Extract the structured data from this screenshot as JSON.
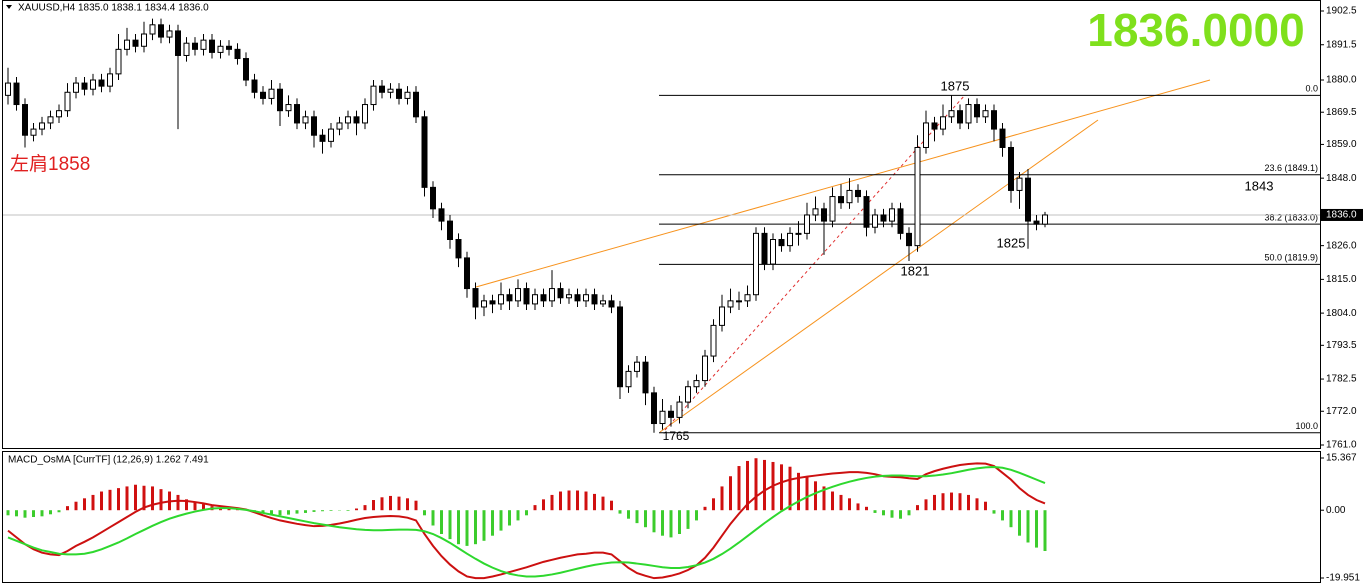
{
  "chart_data": [
    {
      "type": "candlestick",
      "symbol": "XAUUSD,H4",
      "ohlc_text": "1835.0 1838.1 1834.4 1836.0",
      "big_price": "1836.0000",
      "big_price_color": "#7fe01c",
      "ylim": [
        1761.0,
        1902.5
      ],
      "yticks": [
        {
          "value": 1902.5,
          "label": "1902.5"
        },
        {
          "value": 1891.5,
          "label": "1891.5"
        },
        {
          "value": 1880.0,
          "label": "1880.0"
        },
        {
          "value": 1869.5,
          "label": "1869.5"
        },
        {
          "value": 1859.0,
          "label": "1859.0"
        },
        {
          "value": 1848.0,
          "label": "1848.0"
        },
        {
          "value": 1826.0,
          "label": "1826.0"
        },
        {
          "value": 1815.0,
          "label": "1815.0"
        },
        {
          "value": 1804.0,
          "label": "1804.0"
        },
        {
          "value": 1793.5,
          "label": "1793.5"
        },
        {
          "value": 1782.5,
          "label": "1782.5"
        },
        {
          "value": 1772.0,
          "label": "1772.0"
        },
        {
          "value": 1761.0,
          "label": "1761.0"
        }
      ],
      "last_price": {
        "value": 1836.0,
        "label": "1836.0"
      },
      "fib_levels": [
        {
          "value": 1875.0,
          "label": "0.0"
        },
        {
          "value": 1849.1,
          "label": "23.6 (1849.1)"
        },
        {
          "value": 1833.0,
          "label": "38.2 (1833.0)"
        },
        {
          "value": 1819.9,
          "label": "50.0 (1819.9)"
        },
        {
          "value": 1765.0,
          "label": "100.0"
        }
      ],
      "annotations": [
        {
          "text": "左肩1858",
          "color": "#e02020"
        },
        {
          "text": "1875"
        },
        {
          "text": "1843"
        },
        {
          "text": "1825"
        },
        {
          "text": "1821"
        },
        {
          "text": "1765"
        }
      ],
      "ohlc": [
        [
          1875,
          1884,
          1872,
          1879
        ],
        [
          1879,
          1881,
          1870,
          1872
        ],
        [
          1872,
          1874,
          1858,
          1862
        ],
        [
          1862,
          1866,
          1860,
          1864
        ],
        [
          1864,
          1868,
          1862,
          1866
        ],
        [
          1866,
          1870,
          1864,
          1868
        ],
        [
          1868,
          1872,
          1866,
          1870
        ],
        [
          1870,
          1879,
          1868,
          1876
        ],
        [
          1876,
          1881,
          1874,
          1879
        ],
        [
          1879,
          1881,
          1875,
          1877
        ],
        [
          1877,
          1882,
          1875,
          1880
        ],
        [
          1880,
          1882,
          1876,
          1878
        ],
        [
          1878,
          1884,
          1876,
          1882
        ],
        [
          1882,
          1895,
          1880,
          1890
        ],
        [
          1890,
          1897,
          1888,
          1893
        ],
        [
          1893,
          1895,
          1889,
          1891
        ],
        [
          1891,
          1899,
          1889,
          1895
        ],
        [
          1895,
          1900,
          1893,
          1898
        ],
        [
          1898,
          1900,
          1892,
          1894
        ],
        [
          1894,
          1898,
          1892,
          1896
        ],
        [
          1896,
          1898,
          1864,
          1888
        ],
        [
          1888,
          1894,
          1886,
          1892
        ],
        [
          1892,
          1894,
          1888,
          1890
        ],
        [
          1890,
          1895,
          1888,
          1893
        ],
        [
          1893,
          1895,
          1887,
          1889
        ],
        [
          1889,
          1893,
          1887,
          1891
        ],
        [
          1891,
          1893,
          1888,
          1890
        ],
        [
          1890,
          1892,
          1885,
          1887
        ],
        [
          1887,
          1889,
          1878,
          1880
        ],
        [
          1880,
          1882,
          1874,
          1876
        ],
        [
          1876,
          1878,
          1872,
          1874
        ],
        [
          1874,
          1880,
          1872,
          1877
        ],
        [
          1877,
          1879,
          1865,
          1870
        ],
        [
          1870,
          1875,
          1868,
          1872
        ],
        [
          1872,
          1874,
          1864,
          1866
        ],
        [
          1866,
          1870,
          1864,
          1868
        ],
        [
          1868,
          1870,
          1858,
          1862
        ],
        [
          1862,
          1864,
          1856,
          1860
        ],
        [
          1860,
          1866,
          1858,
          1864
        ],
        [
          1864,
          1868,
          1862,
          1866
        ],
        [
          1866,
          1870,
          1864,
          1868
        ],
        [
          1868,
          1870,
          1862,
          1866
        ],
        [
          1866,
          1874,
          1864,
          1872
        ],
        [
          1872,
          1880,
          1870,
          1878
        ],
        [
          1878,
          1880,
          1874,
          1876
        ],
        [
          1876,
          1879,
          1874,
          1877
        ],
        [
          1877,
          1879,
          1872,
          1874
        ],
        [
          1874,
          1878,
          1872,
          1876
        ],
        [
          1876,
          1878,
          1866,
          1868
        ],
        [
          1868,
          1870,
          1842,
          1845
        ],
        [
          1845,
          1847,
          1835,
          1838
        ],
        [
          1838,
          1840,
          1831,
          1834
        ],
        [
          1834,
          1836,
          1825,
          1828
        ],
        [
          1828,
          1830,
          1819,
          1822
        ],
        [
          1822,
          1824,
          1809,
          1812
        ],
        [
          1812,
          1814,
          1802,
          1806
        ],
        [
          1806,
          1810,
          1803,
          1808
        ],
        [
          1808,
          1810,
          1804,
          1807
        ],
        [
          1807,
          1814,
          1805,
          1810
        ],
        [
          1810,
          1812,
          1805,
          1808
        ],
        [
          1808,
          1815,
          1806,
          1812
        ],
        [
          1812,
          1814,
          1805,
          1807
        ],
        [
          1807,
          1812,
          1805,
          1810
        ],
        [
          1810,
          1812,
          1806,
          1808
        ],
        [
          1808,
          1818,
          1806,
          1812
        ],
        [
          1812,
          1814,
          1807,
          1809
        ],
        [
          1809,
          1812,
          1807,
          1810
        ],
        [
          1810,
          1812,
          1806,
          1808
        ],
        [
          1808,
          1812,
          1806,
          1810
        ],
        [
          1810,
          1812,
          1805,
          1807
        ],
        [
          1807,
          1810,
          1806,
          1808
        ],
        [
          1808,
          1810,
          1804,
          1806
        ],
        [
          1806,
          1808,
          1776,
          1780
        ],
        [
          1780,
          1787,
          1778,
          1785
        ],
        [
          1785,
          1790,
          1783,
          1788
        ],
        [
          1788,
          1790,
          1774,
          1778
        ],
        [
          1778,
          1780,
          1765,
          1768
        ],
        [
          1768,
          1776,
          1766,
          1772
        ],
        [
          1772,
          1774,
          1767,
          1770
        ],
        [
          1770,
          1777,
          1768,
          1775
        ],
        [
          1775,
          1782,
          1773,
          1780
        ],
        [
          1780,
          1784,
          1778,
          1782
        ],
        [
          1782,
          1792,
          1780,
          1790
        ],
        [
          1790,
          1802,
          1788,
          1800
        ],
        [
          1800,
          1810,
          1798,
          1806
        ],
        [
          1806,
          1812,
          1804,
          1808
        ],
        [
          1808,
          1811,
          1805,
          1808
        ],
        [
          1808,
          1813,
          1806,
          1810
        ],
        [
          1810,
          1832,
          1808,
          1830
        ],
        [
          1830,
          1832,
          1818,
          1820
        ],
        [
          1820,
          1830,
          1818,
          1828
        ],
        [
          1828,
          1830,
          1824,
          1826
        ],
        [
          1826,
          1832,
          1824,
          1830
        ],
        [
          1830,
          1834,
          1826,
          1830
        ],
        [
          1830,
          1840,
          1828,
          1836
        ],
        [
          1836,
          1842,
          1834,
          1838
        ],
        [
          1838,
          1840,
          1823,
          1834
        ],
        [
          1834,
          1845,
          1832,
          1842
        ],
        [
          1842,
          1846,
          1838,
          1840
        ],
        [
          1840,
          1848,
          1838,
          1844
        ],
        [
          1844,
          1846,
          1840,
          1842
        ],
        [
          1842,
          1844,
          1829,
          1832
        ],
        [
          1832,
          1838,
          1830,
          1836
        ],
        [
          1836,
          1838,
          1832,
          1834
        ],
        [
          1834,
          1840,
          1832,
          1838
        ],
        [
          1838,
          1840,
          1828,
          1830
        ],
        [
          1830,
          1832,
          1821,
          1826
        ],
        [
          1826,
          1862,
          1824,
          1858
        ],
        [
          1858,
          1870,
          1856,
          1866
        ],
        [
          1866,
          1868,
          1860,
          1864
        ],
        [
          1864,
          1872,
          1862,
          1868
        ],
        [
          1868,
          1875,
          1866,
          1870
        ],
        [
          1870,
          1872,
          1864,
          1866
        ],
        [
          1866,
          1874,
          1864,
          1872
        ],
        [
          1872,
          1874,
          1866,
          1868
        ],
        [
          1868,
          1872,
          1866,
          1870
        ],
        [
          1870,
          1872,
          1860,
          1864
        ],
        [
          1864,
          1866,
          1855,
          1858
        ],
        [
          1858,
          1860,
          1840,
          1844
        ],
        [
          1844,
          1850,
          1838,
          1848
        ],
        [
          1848,
          1851,
          1825,
          1834
        ],
        [
          1834,
          1836,
          1831,
          1833
        ],
        [
          1833,
          1837,
          1832,
          1836
        ]
      ]
    },
    {
      "type": "macd",
      "title": "MACD_OsMA [CurrTF] (12,26,9) 1.262 7.491",
      "ylim": [
        -19.951,
        15.367
      ],
      "yticks": [
        {
          "value": 15.367,
          "label": "15.367"
        },
        {
          "value": 0,
          "label": "0.00"
        },
        {
          "value": -19.951,
          "label": "-19.951"
        }
      ],
      "up_color": "#d01010",
      "down_color": "#3ccc2c",
      "histogram": [
        -1.5,
        -1.8,
        -2.2,
        -2.0,
        -1.8,
        -1.2,
        -0.6,
        1.2,
        2.5,
        3.5,
        4.5,
        5.5,
        6.0,
        6.5,
        7.0,
        7.5,
        7.2,
        7.0,
        6.2,
        5.5,
        4.5,
        3.2,
        2.5,
        1.8,
        1.2,
        0.8,
        0.6,
        0.5,
        0.2,
        -0.5,
        -0.9,
        -1.2,
        -1.5,
        -1.3,
        -1.0,
        -0.8,
        -0.5,
        -0.3,
        -0.2,
        -0.1,
        -0.2,
        0.5,
        1.5,
        3.0,
        3.8,
        4.2,
        4.0,
        3.5,
        2.8,
        -1.5,
        -4.5,
        -7.0,
        -8.5,
        -10.0,
        -10.5,
        -10.0,
        -9.0,
        -7.5,
        -6.0,
        -4.5,
        -3.0,
        -1.5,
        1.5,
        3.2,
        4.5,
        5.5,
        5.8,
        5.8,
        5.5,
        4.8,
        4.0,
        2.8,
        -1.0,
        -2.5,
        -3.8,
        -5.0,
        -6.5,
        -7.5,
        -8.0,
        -7.0,
        -5.5,
        -3.0,
        1.0,
        3.5,
        7.0,
        10.0,
        13.0,
        14.5,
        15.3,
        14.8,
        14.2,
        13.5,
        12.8,
        11.0,
        10.0,
        8.5,
        7.0,
        5.5,
        4.5,
        3.5,
        2.0,
        1.0,
        -0.8,
        -1.5,
        -2.2,
        -2.5,
        -1.5,
        1.5,
        3.2,
        4.5,
        5.0,
        5.2,
        5.0,
        4.5,
        3.5,
        2.5,
        -1.0,
        -3.0,
        -5.0,
        -7.5,
        -9.5,
        -11.0,
        -12.0
      ],
      "series": [
        {
          "color": "#cc1010",
          "values": [
            -6,
            -8,
            -10,
            -11.5,
            -12.5,
            -13,
            -13.2,
            -12,
            -10.5,
            -9.3,
            -8,
            -6.5,
            -5,
            -3.5,
            -2,
            -0.5,
            0.8,
            1.6,
            2.2,
            2.6,
            2.8,
            2.7,
            2.4,
            2,
            1.5,
            1.2,
            0.9,
            0.6,
            0.2,
            -0.6,
            -1.5,
            -2.3,
            -3,
            -3.5,
            -4,
            -4.4,
            -4.7,
            -4.6,
            -4.3,
            -3.9,
            -3.4,
            -2.8,
            -2.3,
            -2,
            -1.8,
            -1.7,
            -1.8,
            -2.2,
            -3,
            -7,
            -10.5,
            -13.5,
            -16,
            -18,
            -19.5,
            -20,
            -20,
            -19.5,
            -18.9,
            -18.2,
            -17.5,
            -16.8,
            -16,
            -15.2,
            -14.6,
            -14,
            -13.5,
            -13,
            -12.8,
            -12.5,
            -12.5,
            -13,
            -15,
            -17,
            -18.5,
            -19.3,
            -20,
            -19.8,
            -19.3,
            -18.6,
            -17.6,
            -16.2,
            -14,
            -11,
            -7.5,
            -4,
            -1,
            1.8,
            4,
            5.8,
            7.2,
            8.2,
            9,
            9.5,
            9.9,
            10.2,
            10.5,
            10.8,
            11,
            11.2,
            11.2,
            11,
            10.6,
            10,
            9.8,
            9.7,
            9.4,
            9.2,
            10.6,
            11.5,
            12.2,
            12.8,
            13.3,
            13.6,
            13.8,
            13.7,
            13,
            11,
            9,
            6.5,
            4.5,
            3,
            2
          ]
        },
        {
          "color": "#2ed82e",
          "values": [
            -8,
            -9,
            -10,
            -11,
            -11.8,
            -12.3,
            -12.8,
            -13,
            -13,
            -12.8,
            -12.3,
            -11.5,
            -10.5,
            -9.5,
            -8.3,
            -7,
            -5.8,
            -4.6,
            -3.5,
            -2.5,
            -1.7,
            -1,
            -0.4,
            0.1,
            0.5,
            0.6,
            0.6,
            0.4,
            0.1,
            -0.3,
            -0.8,
            -1.3,
            -1.8,
            -2.3,
            -2.8,
            -3.3,
            -3.8,
            -4.2,
            -4.6,
            -5,
            -5.3,
            -5.6,
            -5.8,
            -5.9,
            -5.9,
            -5.8,
            -5.7,
            -5.7,
            -5.8,
            -6.2,
            -7,
            -8.2,
            -9.6,
            -11.2,
            -12.8,
            -14.3,
            -15.7,
            -16.9,
            -17.9,
            -18.7,
            -19.2,
            -19.5,
            -19.5,
            -19.3,
            -18.9,
            -18.4,
            -17.8,
            -17.2,
            -16.6,
            -16.1,
            -15.7,
            -15.4,
            -15.3,
            -15.4,
            -15.7,
            -16,
            -16.4,
            -16.8,
            -17,
            -17,
            -16.7,
            -16.2,
            -15.4,
            -14.3,
            -12.9,
            -11.3,
            -9.5,
            -7.6,
            -5.7,
            -3.8,
            -2,
            -0.3,
            1.2,
            2.6,
            3.9,
            5,
            6,
            6.9,
            7.7,
            8.4,
            9,
            9.5,
            9.9,
            10.1,
            10.2,
            10.2,
            10.1,
            10,
            10,
            10.2,
            10.5,
            10.9,
            11.4,
            11.9,
            12.3,
            12.6,
            12.7,
            12.5,
            11.9,
            11,
            10,
            9,
            8
          ]
        }
      ]
    }
  ]
}
